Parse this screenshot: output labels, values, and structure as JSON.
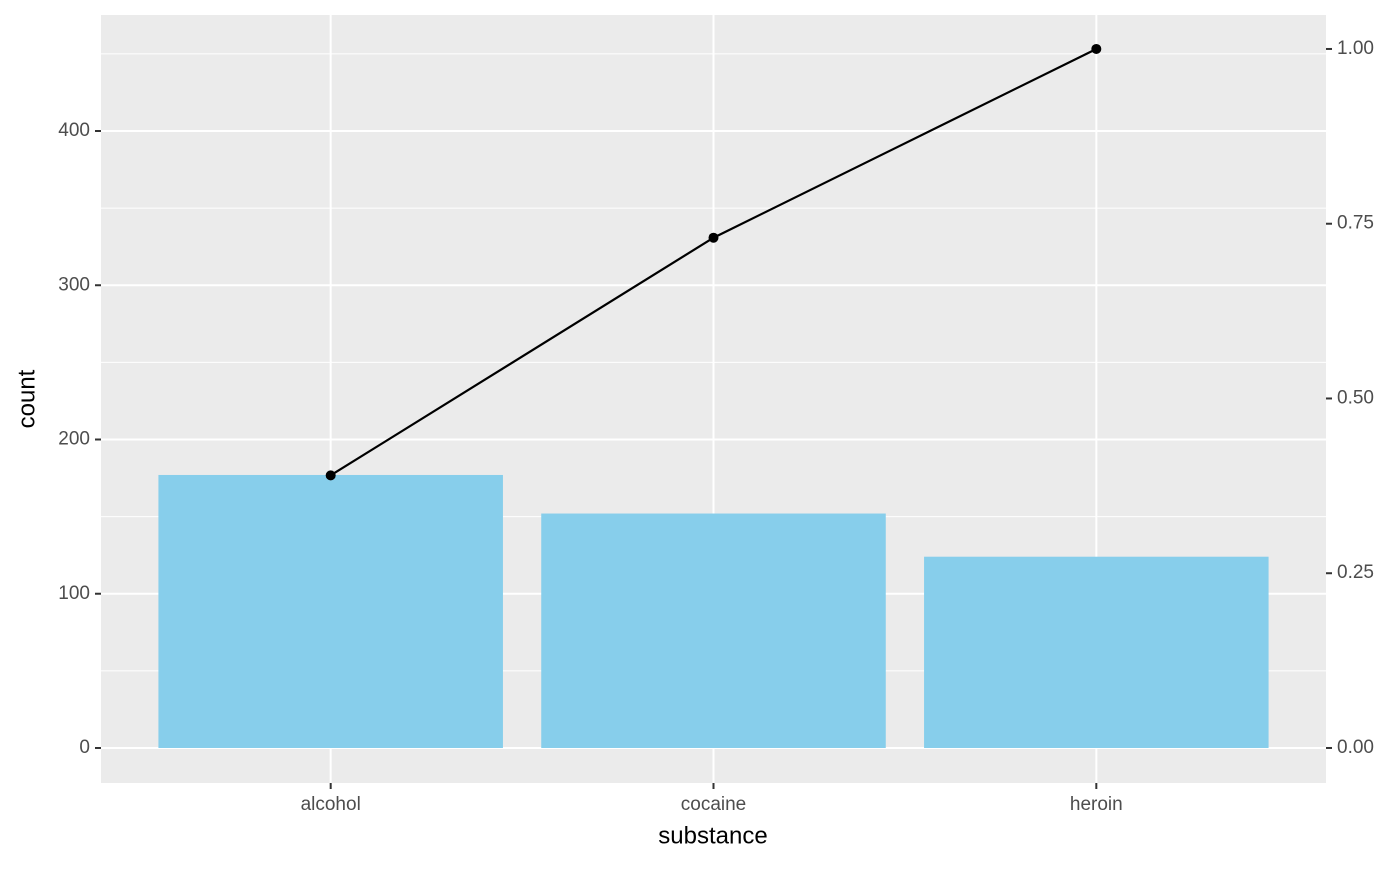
{
  "chart_data": {
    "type": "bar",
    "x_label": "substance",
    "y_label": "count",
    "categories": [
      "alcohol",
      "cocaine",
      "heroin"
    ],
    "series": [
      {
        "values": [
          177,
          152,
          124
        ],
        "color": "#87ceeb"
      },
      {
        "type": "line",
        "axis": "y2",
        "values": [
          0.39,
          0.73,
          1
        ],
        "color": "#000000"
      }
    ],
    "ylim": [
      -22.7,
      475.2
    ],
    "yticks": [
      0,
      100,
      200,
      300,
      400
    ],
    "y_minor_ticks": [
      50,
      150,
      250,
      350,
      450
    ],
    "y2lim": [
      -0.0501,
      1.0486
    ],
    "y2ticks": [
      {
        "value": 0,
        "label": "0.00"
      },
      {
        "value": 0.25,
        "label": "0.25"
      },
      {
        "value": 0.5,
        "label": "0.50"
      },
      {
        "value": 0.75,
        "label": "0.75"
      },
      {
        "value": 1,
        "label": "1.00"
      }
    ],
    "grid": true
  }
}
